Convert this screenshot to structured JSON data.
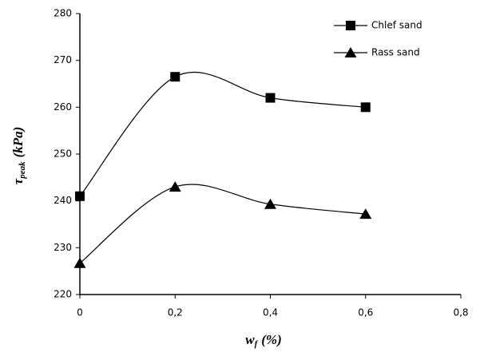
{
  "chart_data": {
    "type": "line",
    "x": [
      0,
      0.2,
      0.4,
      0.6
    ],
    "series": [
      {
        "name": "Chlef sand",
        "color": "#000000",
        "marker": "square",
        "values": [
          241,
          266.5,
          262,
          260
        ]
      },
      {
        "name": "Rass sand",
        "color": "#000000",
        "marker": "triangle",
        "values": [
          226.7,
          243,
          239.3,
          237.2
        ]
      }
    ],
    "xlim": [
      0,
      0.8
    ],
    "xticks": [
      0,
      {
        "value": 0.2,
        "label": "0,2"
      },
      {
        "value": 0.4,
        "label": "0,4"
      },
      {
        "value": 0.6,
        "label": "0,6"
      },
      {
        "value": 0.8,
        "label": "0,8"
      }
    ],
    "ylim": [
      220,
      280
    ],
    "yticks": [
      220,
      230,
      240,
      250,
      260,
      270,
      280
    ],
    "xlabel": {
      "symbol": "w",
      "sub": "f",
      "unit": "(%)"
    },
    "ylabel": {
      "symbol": "τ",
      "sub": "peak",
      "unit": "(kPa)"
    },
    "smooth": true,
    "grid": false,
    "legend": "top-right"
  }
}
